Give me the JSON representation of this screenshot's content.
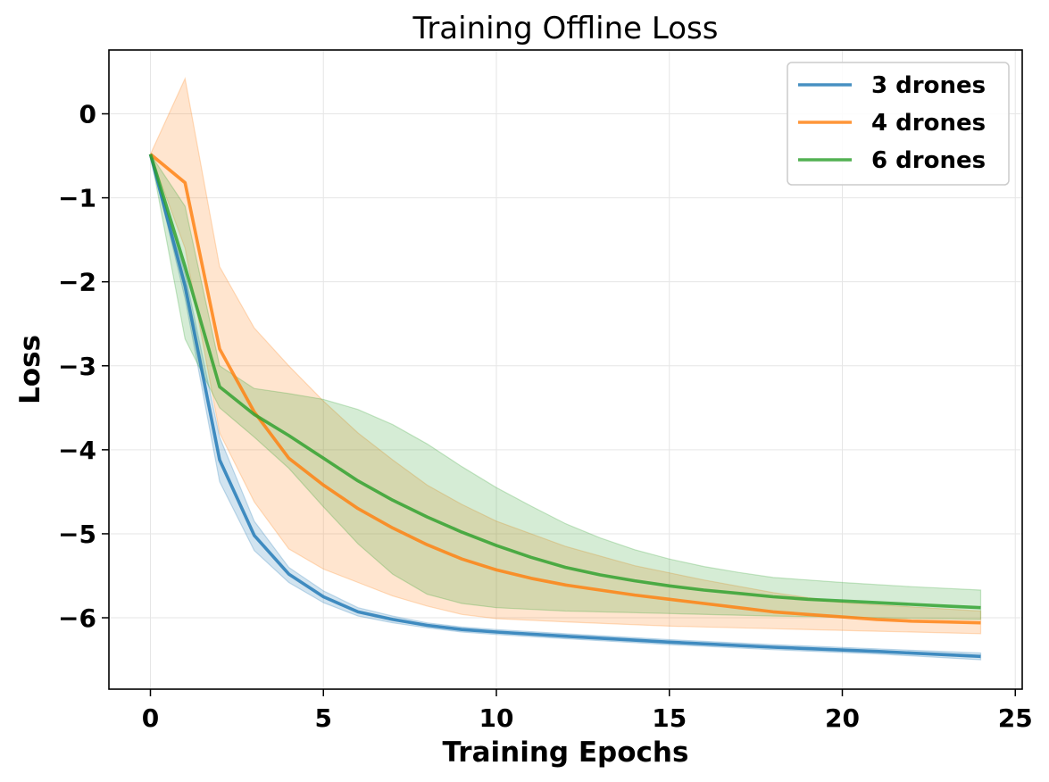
{
  "chart_data": {
    "type": "line",
    "title": "Training Offline Loss",
    "xlabel": "Training Epochs",
    "ylabel": "Loss",
    "xlim": [
      -1.2,
      25.2
    ],
    "ylim": [
      -6.85,
      0.76
    ],
    "xticks": [
      0,
      5,
      10,
      15,
      20,
      25
    ],
    "yticks": [
      0,
      -1,
      -2,
      -3,
      -4,
      -5,
      -6
    ],
    "grid": true,
    "legend_position": "top-right",
    "series": [
      {
        "name": "3 drones",
        "color": "#1f77b4",
        "points": [
          [
            0,
            -0.48
          ],
          [
            1,
            -2.05
          ],
          [
            2,
            -4.12
          ],
          [
            3,
            -5.02
          ],
          [
            4,
            -5.48
          ],
          [
            5,
            -5.75
          ],
          [
            6,
            -5.93
          ],
          [
            7,
            -6.02
          ],
          [
            8,
            -6.09
          ],
          [
            9,
            -6.14
          ],
          [
            10,
            -6.17
          ],
          [
            12,
            -6.22
          ],
          [
            15,
            -6.29
          ],
          [
            18,
            -6.35
          ],
          [
            21,
            -6.4
          ],
          [
            24,
            -6.46
          ]
        ],
        "upper": [
          [
            0,
            -0.48
          ],
          [
            1,
            -1.9
          ],
          [
            2,
            -3.85
          ],
          [
            3,
            -4.85
          ],
          [
            4,
            -5.4
          ],
          [
            5,
            -5.68
          ],
          [
            6,
            -5.88
          ],
          [
            7,
            -5.98
          ],
          [
            8,
            -6.06
          ],
          [
            9,
            -6.11
          ],
          [
            10,
            -6.14
          ],
          [
            12,
            -6.19
          ],
          [
            15,
            -6.26
          ],
          [
            18,
            -6.32
          ],
          [
            21,
            -6.37
          ],
          [
            24,
            -6.42
          ]
        ],
        "lower": [
          [
            0,
            -0.48
          ],
          [
            1,
            -2.2
          ],
          [
            2,
            -4.38
          ],
          [
            3,
            -5.2
          ],
          [
            4,
            -5.58
          ],
          [
            5,
            -5.82
          ],
          [
            6,
            -5.98
          ],
          [
            7,
            -6.06
          ],
          [
            8,
            -6.12
          ],
          [
            9,
            -6.17
          ],
          [
            10,
            -6.2
          ],
          [
            12,
            -6.25
          ],
          [
            15,
            -6.32
          ],
          [
            18,
            -6.38
          ],
          [
            21,
            -6.43
          ],
          [
            24,
            -6.5
          ]
        ]
      },
      {
        "name": "4 drones",
        "color": "#ff7f0e",
        "points": [
          [
            0,
            -0.48
          ],
          [
            1,
            -0.82
          ],
          [
            2,
            -2.8
          ],
          [
            3,
            -3.55
          ],
          [
            4,
            -4.1
          ],
          [
            5,
            -4.42
          ],
          [
            6,
            -4.7
          ],
          [
            7,
            -4.93
          ],
          [
            8,
            -5.13
          ],
          [
            9,
            -5.3
          ],
          [
            10,
            -5.43
          ],
          [
            11,
            -5.53
          ],
          [
            12,
            -5.61
          ],
          [
            13,
            -5.67
          ],
          [
            14,
            -5.73
          ],
          [
            15,
            -5.78
          ],
          [
            16,
            -5.83
          ],
          [
            17,
            -5.88
          ],
          [
            18,
            -5.93
          ],
          [
            19,
            -5.96
          ],
          [
            20,
            -5.99
          ],
          [
            21,
            -6.02
          ],
          [
            22,
            -6.04
          ],
          [
            23,
            -6.05
          ],
          [
            24,
            -6.06
          ]
        ],
        "upper": [
          [
            0,
            -0.48
          ],
          [
            1,
            0.42
          ],
          [
            2,
            -1.82
          ],
          [
            3,
            -2.55
          ],
          [
            4,
            -3.0
          ],
          [
            5,
            -3.42
          ],
          [
            6,
            -3.8
          ],
          [
            7,
            -4.12
          ],
          [
            8,
            -4.42
          ],
          [
            9,
            -4.65
          ],
          [
            10,
            -4.85
          ],
          [
            12,
            -5.15
          ],
          [
            14,
            -5.38
          ],
          [
            16,
            -5.55
          ],
          [
            18,
            -5.7
          ],
          [
            20,
            -5.82
          ],
          [
            22,
            -5.87
          ],
          [
            24,
            -5.92
          ]
        ],
        "lower": [
          [
            0,
            -0.48
          ],
          [
            1,
            -1.6
          ],
          [
            2,
            -3.8
          ],
          [
            3,
            -4.62
          ],
          [
            4,
            -5.18
          ],
          [
            5,
            -5.42
          ],
          [
            6,
            -5.58
          ],
          [
            7,
            -5.74
          ],
          [
            8,
            -5.86
          ],
          [
            9,
            -5.96
          ],
          [
            10,
            -6.01
          ],
          [
            12,
            -6.05
          ],
          [
            15,
            -6.1
          ],
          [
            18,
            -6.13
          ],
          [
            21,
            -6.16
          ],
          [
            24,
            -6.19
          ]
        ]
      },
      {
        "name": "6 drones",
        "color": "#2ca02c",
        "points": [
          [
            0,
            -0.48
          ],
          [
            1,
            -1.82
          ],
          [
            2,
            -3.25
          ],
          [
            3,
            -3.58
          ],
          [
            4,
            -3.83
          ],
          [
            5,
            -4.1
          ],
          [
            6,
            -4.37
          ],
          [
            7,
            -4.6
          ],
          [
            8,
            -4.8
          ],
          [
            9,
            -4.98
          ],
          [
            10,
            -5.14
          ],
          [
            11,
            -5.28
          ],
          [
            12,
            -5.4
          ],
          [
            13,
            -5.49
          ],
          [
            14,
            -5.56
          ],
          [
            15,
            -5.62
          ],
          [
            16,
            -5.67
          ],
          [
            17,
            -5.71
          ],
          [
            18,
            -5.75
          ],
          [
            19,
            -5.78
          ],
          [
            20,
            -5.8
          ],
          [
            21,
            -5.82
          ],
          [
            22,
            -5.84
          ],
          [
            23,
            -5.86
          ],
          [
            24,
            -5.88
          ]
        ],
        "upper": [
          [
            0,
            -0.48
          ],
          [
            1,
            -1.1
          ],
          [
            2,
            -3.0
          ],
          [
            3,
            -3.27
          ],
          [
            4,
            -3.33
          ],
          [
            5,
            -3.4
          ],
          [
            6,
            -3.52
          ],
          [
            7,
            -3.7
          ],
          [
            8,
            -3.93
          ],
          [
            9,
            -4.2
          ],
          [
            10,
            -4.45
          ],
          [
            11,
            -4.67
          ],
          [
            12,
            -4.88
          ],
          [
            13,
            -5.05
          ],
          [
            14,
            -5.19
          ],
          [
            15,
            -5.3
          ],
          [
            16,
            -5.39
          ],
          [
            17,
            -5.46
          ],
          [
            18,
            -5.52
          ],
          [
            20,
            -5.58
          ],
          [
            22,
            -5.63
          ],
          [
            24,
            -5.67
          ]
        ],
        "lower": [
          [
            0,
            -0.48
          ],
          [
            1,
            -2.68
          ],
          [
            2,
            -3.5
          ],
          [
            3,
            -3.85
          ],
          [
            4,
            -4.22
          ],
          [
            5,
            -4.68
          ],
          [
            6,
            -5.12
          ],
          [
            7,
            -5.48
          ],
          [
            8,
            -5.72
          ],
          [
            9,
            -5.83
          ],
          [
            10,
            -5.88
          ],
          [
            12,
            -5.92
          ],
          [
            15,
            -5.95
          ],
          [
            18,
            -5.98
          ],
          [
            21,
            -6.0
          ],
          [
            24,
            -6.02
          ]
        ]
      }
    ]
  }
}
